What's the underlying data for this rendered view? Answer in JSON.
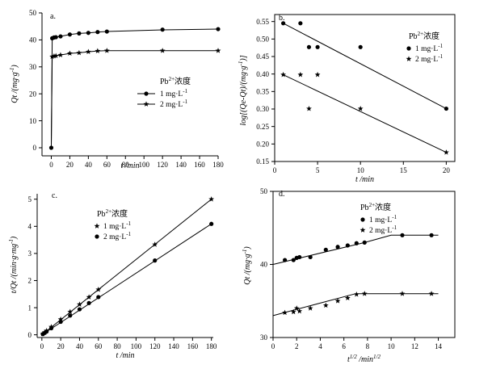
{
  "chart_data": [
    {
      "panel": "a.",
      "type": "line",
      "title": "",
      "xlabel": "t /min",
      "ylabel": "Qt /(mg·g⁻¹)",
      "xlim": [
        -10,
        180
      ],
      "ylim": [
        -3,
        50
      ],
      "xticks": [
        0,
        20,
        40,
        60,
        80,
        100,
        120,
        140,
        160,
        180
      ],
      "yticks": [
        0,
        10,
        20,
        30,
        40,
        50
      ],
      "legend_title": "Pb²⁺浓度",
      "legend_position": "center-right",
      "series": [
        {
          "name": "1 mg·L⁻¹",
          "marker": "circle",
          "points": [
            [
              0,
              0
            ],
            [
              1,
              40.6
            ],
            [
              3,
              40.9
            ],
            [
              5,
              41.0
            ],
            [
              10,
              41.3
            ],
            [
              20,
              42.0
            ],
            [
              30,
              42.4
            ],
            [
              40,
              42.6
            ],
            [
              50,
              42.9
            ],
            [
              60,
              43.1
            ],
            [
              120,
              43.8
            ],
            [
              180,
              44.0
            ]
          ],
          "line": [
            [
              0,
              0
            ],
            [
              1,
              40.6
            ],
            [
              5,
              41.0
            ],
            [
              10,
              41.3
            ],
            [
              20,
              42.0
            ],
            [
              30,
              42.4
            ],
            [
              40,
              42.6
            ],
            [
              50,
              42.9
            ],
            [
              60,
              43.1
            ],
            [
              120,
              43.7
            ],
            [
              180,
              44.0
            ]
          ]
        },
        {
          "name": "2 mg·L⁻¹",
          "marker": "star",
          "points": [
            [
              1,
              33.8
            ],
            [
              3,
              34.0
            ],
            [
              5,
              34.1
            ],
            [
              10,
              34.4
            ],
            [
              20,
              35.0
            ],
            [
              30,
              35.2
            ],
            [
              40,
              35.6
            ],
            [
              50,
              35.9
            ],
            [
              60,
              36.0
            ],
            [
              120,
              36.0
            ],
            [
              180,
              36.0
            ]
          ],
          "line": [
            [
              0,
              0
            ],
            [
              1,
              33.8
            ],
            [
              5,
              34.1
            ],
            [
              10,
              34.4
            ],
            [
              20,
              35.0
            ],
            [
              30,
              35.2
            ],
            [
              40,
              35.6
            ],
            [
              50,
              35.9
            ],
            [
              60,
              36.0
            ],
            [
              120,
              36.0
            ],
            [
              180,
              36.0
            ]
          ]
        }
      ]
    },
    {
      "panel": "b.",
      "type": "scatter",
      "title": "",
      "xlabel": "t /min",
      "ylabel": "log[(Qe-Qt)/(mg·g⁻¹)]",
      "xlim": [
        0,
        21
      ],
      "ylim": [
        0.15,
        0.57
      ],
      "xticks": [
        0,
        5,
        10,
        15,
        20
      ],
      "yticks": [
        0.15,
        0.2,
        0.25,
        0.3,
        0.35,
        0.4,
        0.45,
        0.5,
        0.55
      ],
      "yticklabels": [
        "0.15",
        "0.20",
        "0.25",
        "0.30",
        "0.35",
        "0.40",
        "0.45",
        "0.50",
        "0.55"
      ],
      "legend_title": "Pb²⁺浓度",
      "legend_position": "top-right",
      "series": [
        {
          "name": "1 mg·L⁻¹",
          "marker": "circle",
          "points": [
            [
              1,
              0.545
            ],
            [
              3,
              0.545
            ],
            [
              4,
              0.477
            ],
            [
              5,
              0.477
            ],
            [
              10,
              0.477
            ],
            [
              20,
              0.301
            ]
          ],
          "line": [
            [
              1,
              0.545
            ],
            [
              20,
              0.301
            ]
          ]
        },
        {
          "name": "2 mg·L⁻¹",
          "marker": "star",
          "points": [
            [
              1,
              0.398
            ],
            [
              3,
              0.398
            ],
            [
              4,
              0.301
            ],
            [
              5,
              0.398
            ],
            [
              10,
              0.301
            ],
            [
              20,
              0.176
            ]
          ],
          "line": [
            [
              1,
              0.398
            ],
            [
              20,
              0.176
            ]
          ]
        }
      ]
    },
    {
      "panel": "c.",
      "type": "line",
      "title": "",
      "xlabel": "t /min",
      "ylabel": "t/Qt /(min·g·mg⁻¹)",
      "xlim": [
        -5,
        182
      ],
      "ylim": [
        -0.1,
        5.2
      ],
      "xticks": [
        0,
        20,
        40,
        60,
        80,
        100,
        120,
        140,
        160,
        180
      ],
      "yticks": [
        0,
        1,
        2,
        3,
        4,
        5
      ],
      "legend_title": "Pb²⁺浓度",
      "legend_position": "top-left",
      "series": [
        {
          "name": "1 mg·L⁻¹",
          "marker": "star",
          "points": [
            [
              1,
              0.03
            ],
            [
              3,
              0.09
            ],
            [
              5,
              0.15
            ],
            [
              10,
              0.29
            ],
            [
              20,
              0.57
            ],
            [
              30,
              0.85
            ],
            [
              40,
              1.12
            ],
            [
              50,
              1.39
            ],
            [
              60,
              1.67
            ],
            [
              120,
              3.33
            ],
            [
              180,
              5.0
            ]
          ],
          "line": [
            [
              0,
              0
            ],
            [
              180,
              5.0
            ]
          ]
        },
        {
          "name": "2 mg·L⁻¹",
          "marker": "circle",
          "points": [
            [
              1,
              0.025
            ],
            [
              3,
              0.07
            ],
            [
              5,
              0.12
            ],
            [
              10,
              0.24
            ],
            [
              20,
              0.48
            ],
            [
              30,
              0.71
            ],
            [
              40,
              0.94
            ],
            [
              50,
              1.17
            ],
            [
              60,
              1.39
            ],
            [
              120,
              2.74
            ],
            [
              180,
              4.09
            ]
          ],
          "line": [
            [
              0,
              0
            ],
            [
              180,
              4.09
            ]
          ]
        }
      ]
    },
    {
      "panel": "d.",
      "type": "line",
      "title": "",
      "xlabel": "t^1/2 /min^1/2",
      "ylabel": "Qt /(mg·g⁻¹)",
      "xlim": [
        0,
        15.4
      ],
      "ylim": [
        30,
        50
      ],
      "xticks": [
        0,
        2,
        4,
        6,
        8,
        10,
        12,
        14
      ],
      "yticks": [
        30,
        40,
        50
      ],
      "legend_title": "Pb²⁺浓度",
      "legend_position": "top-center",
      "series": [
        {
          "name": "1 mg·L⁻¹",
          "marker": "circle",
          "points": [
            [
              1,
              40.6
            ],
            [
              1.73,
              40.6
            ],
            [
              2.0,
              40.9
            ],
            [
              2.24,
              41.0
            ],
            [
              3.16,
              41.0
            ],
            [
              4.47,
              42.0
            ],
            [
              5.48,
              42.4
            ],
            [
              6.32,
              42.6
            ],
            [
              7.07,
              42.9
            ],
            [
              7.75,
              43.0
            ],
            [
              10.95,
              44.0
            ],
            [
              13.42,
              44.0
            ]
          ],
          "line": [
            [
              0,
              40.0
            ],
            [
              7.75,
              43.0
            ],
            [
              10.0,
              44.0
            ],
            [
              14.0,
              44.0
            ]
          ]
        },
        {
          "name": "2 mg·L⁻¹",
          "marker": "star",
          "points": [
            [
              1,
              33.4
            ],
            [
              1.73,
              33.5
            ],
            [
              2.0,
              34.0
            ],
            [
              2.24,
              33.6
            ],
            [
              3.16,
              34.0
            ],
            [
              4.47,
              34.4
            ],
            [
              5.48,
              35.0
            ],
            [
              6.32,
              35.4
            ],
            [
              7.07,
              35.9
            ],
            [
              7.75,
              36.0
            ],
            [
              10.95,
              36.0
            ],
            [
              13.42,
              36.0
            ]
          ],
          "line": [
            [
              0,
              33.0
            ],
            [
              7.0,
              36.0
            ],
            [
              14.0,
              36.0
            ]
          ]
        }
      ]
    }
  ]
}
